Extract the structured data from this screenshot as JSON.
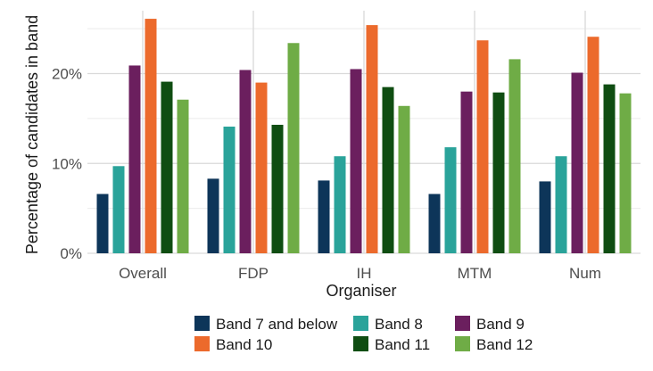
{
  "chart_data": {
    "type": "bar",
    "title": "",
    "xlabel": "Organiser",
    "ylabel": "Percentage of candidates in band",
    "categories": [
      "Overall",
      "FDP",
      "IH",
      "MTM",
      "Num"
    ],
    "ylim": [
      0,
      27
    ],
    "yticks": [
      0,
      10,
      20
    ],
    "ytick_labels": [
      "0%",
      "10%",
      "20%"
    ],
    "grid": true,
    "legend_position": "bottom",
    "series": [
      {
        "name": "Band 7 and below",
        "color": "#0d3559",
        "values": [
          6.6,
          8.3,
          8.1,
          6.6,
          8.0
        ]
      },
      {
        "name": "Band 8",
        "color": "#2aa39a",
        "values": [
          9.7,
          14.1,
          10.8,
          11.8,
          10.8
        ]
      },
      {
        "name": "Band 9",
        "color": "#6b1f5e",
        "values": [
          20.9,
          20.4,
          20.5,
          18.0,
          20.1
        ]
      },
      {
        "name": "Band 10",
        "color": "#ec6a2c",
        "values": [
          26.1,
          19.0,
          25.4,
          23.7,
          24.1
        ]
      },
      {
        "name": "Band 11",
        "color": "#0f4d12",
        "values": [
          19.1,
          14.3,
          18.5,
          17.9,
          18.8
        ]
      },
      {
        "name": "Band 12",
        "color": "#6fac46",
        "values": [
          17.1,
          23.4,
          16.4,
          21.6,
          17.8
        ]
      }
    ]
  }
}
